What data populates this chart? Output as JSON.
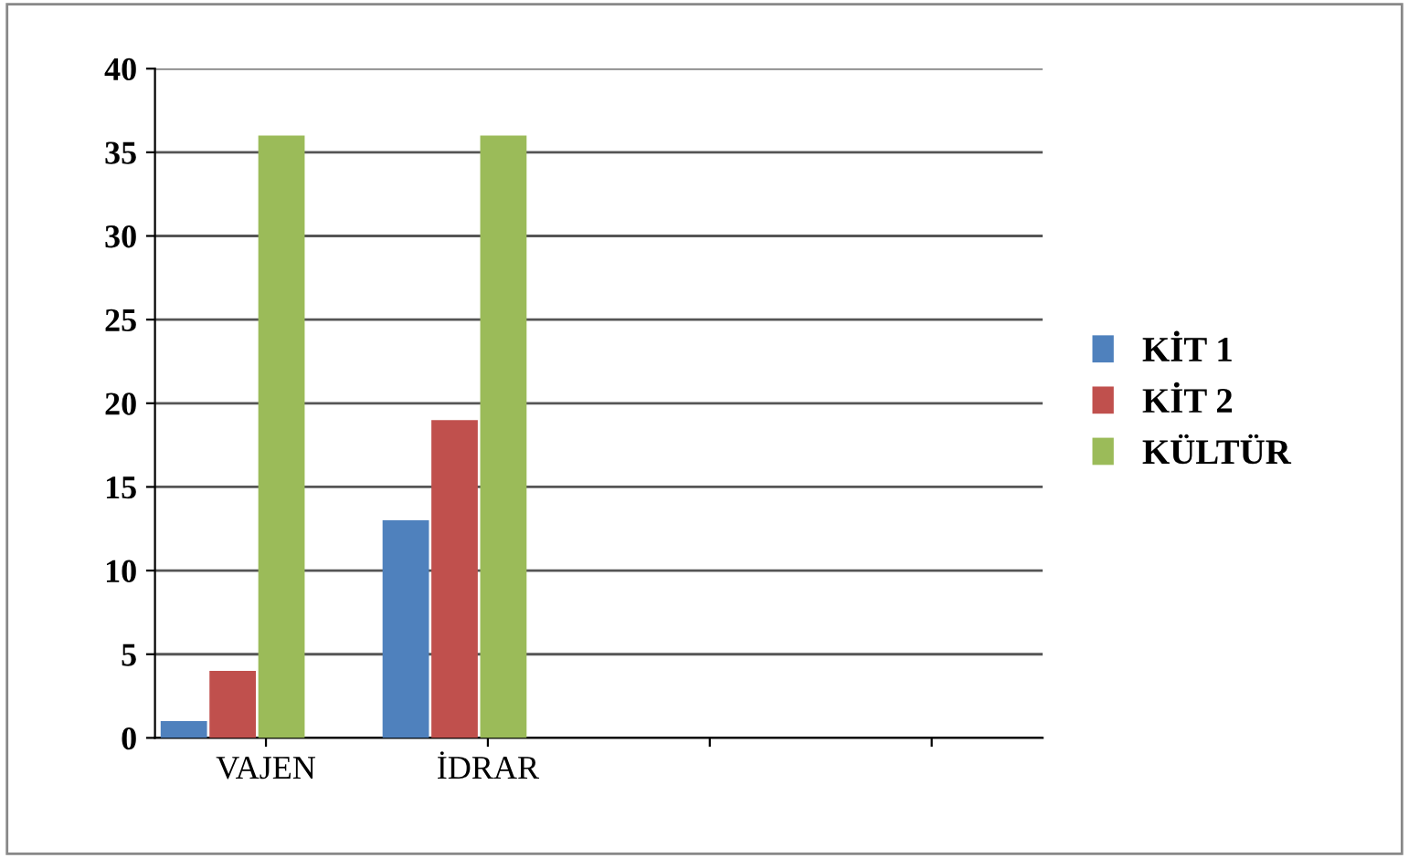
{
  "chart_data": {
    "type": "bar",
    "categories": [
      "VAJEN",
      "İDRAR",
      null,
      null
    ],
    "series": [
      {
        "name": "KİT 1",
        "color": "#4f81bd",
        "values": [
          1,
          13,
          null,
          null
        ]
      },
      {
        "name": "KİT 2",
        "color": "#c0504d",
        "values": [
          4,
          19,
          null,
          null
        ]
      },
      {
        "name": "KÜLTÜR",
        "color": "#9bbb59",
        "values": [
          36,
          36,
          null,
          null
        ]
      }
    ],
    "ylim": [
      0,
      40
    ],
    "yticks": [
      0,
      5,
      10,
      15,
      20,
      25,
      30,
      35,
      40
    ],
    "grid": "y",
    "legend": "right"
  }
}
